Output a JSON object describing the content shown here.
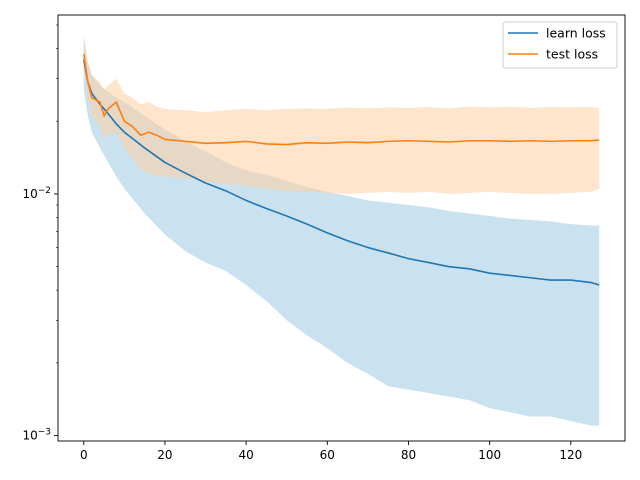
{
  "chart_data": {
    "type": "line",
    "title": "",
    "xlabel": "",
    "ylabel": "",
    "xlim": [
      -6.35,
      133.35
    ],
    "ylim": [
      0.00095,
      0.055
    ],
    "yscale": "log",
    "grid": false,
    "legend_position": "top-right",
    "x_ticks": [
      0,
      20,
      40,
      60,
      80,
      100,
      120
    ],
    "x_tick_labels": [
      "0",
      "20",
      "40",
      "60",
      "80",
      "100",
      "120"
    ],
    "y_ticks": [
      0.001,
      0.01
    ],
    "y_tick_parts": [
      {
        "base": "10",
        "exp": "−3"
      },
      {
        "base": "10",
        "exp": "−2"
      }
    ],
    "series": [
      {
        "name": "learn loss",
        "color": "#1f77b4",
        "band_color": "#9ecae1",
        "x": [
          0,
          1,
          2,
          4,
          6,
          8,
          10,
          15,
          20,
          25,
          30,
          35,
          40,
          45,
          50,
          55,
          60,
          65,
          70,
          75,
          80,
          85,
          90,
          95,
          100,
          105,
          110,
          115,
          120,
          125,
          127
        ],
        "y": [
          0.036,
          0.029,
          0.026,
          0.0235,
          0.0215,
          0.0195,
          0.018,
          0.0155,
          0.0135,
          0.0122,
          0.0111,
          0.0103,
          0.0094,
          0.0087,
          0.0081,
          0.0075,
          0.0069,
          0.0064,
          0.006,
          0.0057,
          0.0054,
          0.0052,
          0.005,
          0.0049,
          0.0047,
          0.0046,
          0.0045,
          0.0044,
          0.0044,
          0.0043,
          0.0042
        ],
        "lower": [
          0.027,
          0.021,
          0.018,
          0.0155,
          0.0135,
          0.0118,
          0.0105,
          0.0083,
          0.0068,
          0.0058,
          0.0052,
          0.0048,
          0.0042,
          0.0036,
          0.003,
          0.0026,
          0.0023,
          0.002,
          0.0018,
          0.0016,
          0.00155,
          0.0015,
          0.00145,
          0.0014,
          0.0013,
          0.00125,
          0.0012,
          0.0012,
          0.00115,
          0.0011,
          0.0011
        ],
        "upper": [
          0.045,
          0.035,
          0.031,
          0.028,
          0.0265,
          0.025,
          0.024,
          0.021,
          0.0185,
          0.0165,
          0.015,
          0.0135,
          0.0125,
          0.012,
          0.0113,
          0.0107,
          0.0102,
          0.0098,
          0.0094,
          0.0092,
          0.009,
          0.0088,
          0.0085,
          0.0083,
          0.0081,
          0.0079,
          0.0078,
          0.0077,
          0.0075,
          0.0074,
          0.0074
        ]
      },
      {
        "name": "test loss",
        "color": "#ff7f0e",
        "band_color": "#fdd0a2",
        "x": [
          0,
          1,
          2,
          4,
          5,
          6,
          8,
          10,
          12,
          14,
          16,
          18,
          20,
          25,
          30,
          35,
          40,
          45,
          50,
          55,
          60,
          65,
          70,
          75,
          80,
          85,
          90,
          95,
          100,
          105,
          110,
          115,
          120,
          125,
          127
        ],
        "y": [
          0.038,
          0.029,
          0.025,
          0.024,
          0.021,
          0.0225,
          0.024,
          0.02,
          0.019,
          0.0175,
          0.018,
          0.0175,
          0.0168,
          0.0165,
          0.0162,
          0.0163,
          0.0165,
          0.0161,
          0.016,
          0.0163,
          0.0162,
          0.0164,
          0.0163,
          0.0165,
          0.0166,
          0.0165,
          0.0164,
          0.0166,
          0.0166,
          0.0165,
          0.0166,
          0.0165,
          0.0166,
          0.0166,
          0.0167
        ],
        "lower": [
          0.033,
          0.025,
          0.021,
          0.019,
          0.017,
          0.0175,
          0.018,
          0.0155,
          0.014,
          0.0127,
          0.0122,
          0.0118,
          0.0118,
          0.0116,
          0.0113,
          0.011,
          0.0108,
          0.0105,
          0.0103,
          0.0102,
          0.0101,
          0.01,
          0.0101,
          0.0102,
          0.0101,
          0.0102,
          0.01,
          0.0101,
          0.0102,
          0.0101,
          0.01,
          0.01,
          0.0101,
          0.0102,
          0.0105
        ],
        "upper": [
          0.042,
          0.035,
          0.031,
          0.029,
          0.027,
          0.028,
          0.03,
          0.026,
          0.025,
          0.0235,
          0.024,
          0.023,
          0.0225,
          0.0222,
          0.0218,
          0.0222,
          0.0225,
          0.0222,
          0.0225,
          0.0226,
          0.0225,
          0.0228,
          0.0226,
          0.0228,
          0.0227,
          0.0229,
          0.0226,
          0.023,
          0.0228,
          0.023,
          0.0227,
          0.0229,
          0.0228,
          0.0229,
          0.0227
        ]
      }
    ]
  }
}
